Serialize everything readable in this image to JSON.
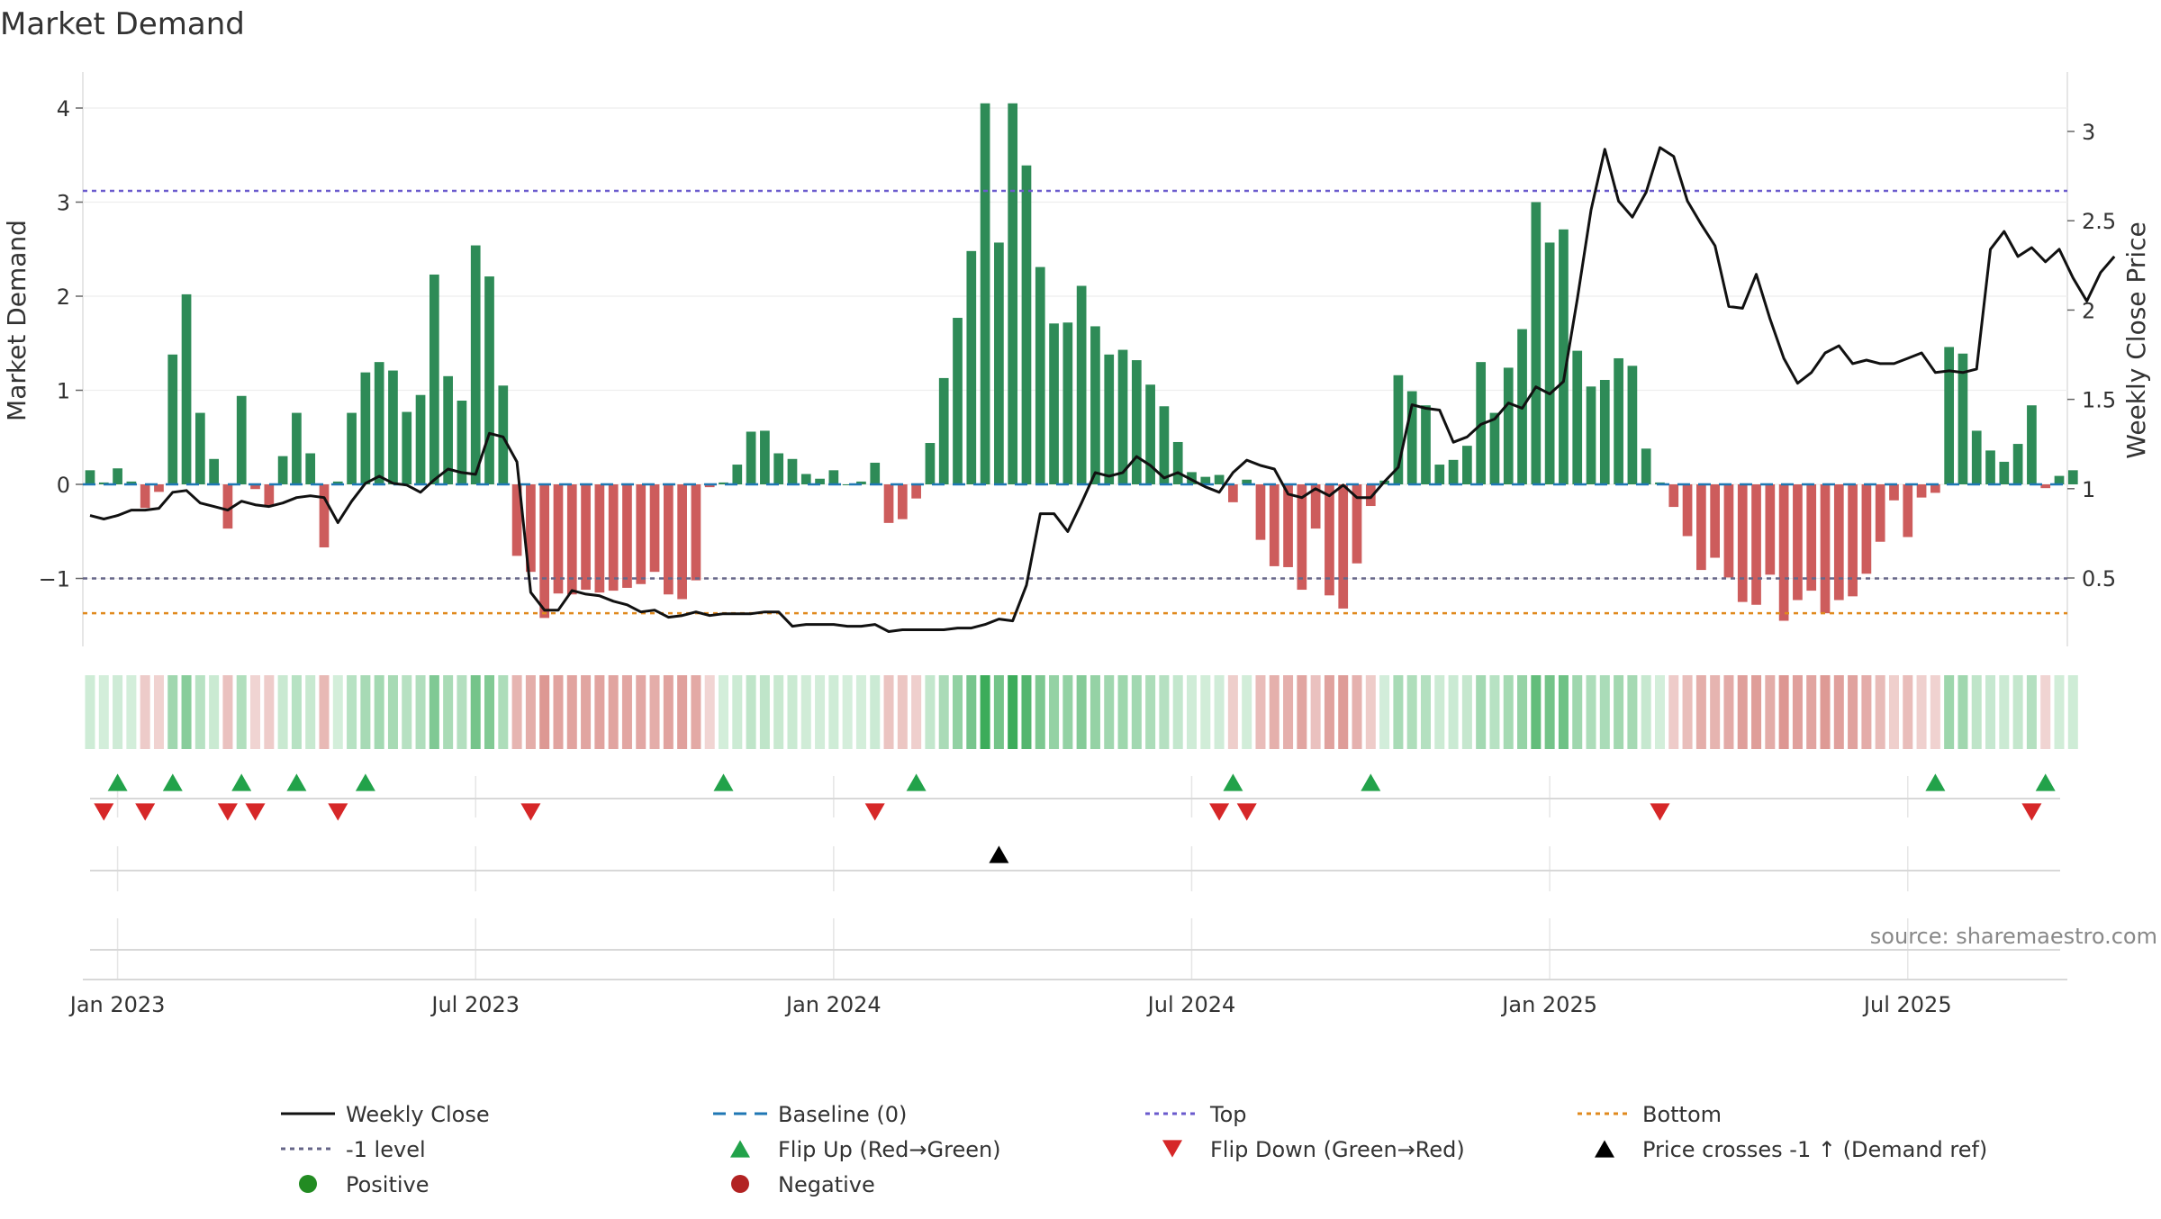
{
  "chart_data": {
    "type": "bar",
    "title": "Market Demand",
    "ylabel": "Market Demand",
    "ylabel_right": "Weekly Close Price",
    "ylim": [
      -1.75,
      4.35
    ],
    "ylim_right": [
      0.2,
      3.2
    ],
    "yticks": [
      -1,
      0,
      1,
      2,
      3,
      4
    ],
    "yticks_right": [
      0.5,
      1,
      1.5,
      2,
      2.5,
      3
    ],
    "levels": {
      "top": 3.12,
      "minus_one": -1.0,
      "bottom": -1.37,
      "baseline": 0
    },
    "x_ticks": [
      {
        "week": 2,
        "label": "Jan 2023"
      },
      {
        "week": 28,
        "label": "Jul 2023"
      },
      {
        "week": 54,
        "label": "Jan 2024"
      },
      {
        "week": 80,
        "label": "Jul 2024"
      },
      {
        "week": 106,
        "label": "Jan 2025"
      },
      {
        "week": 132,
        "label": "Jul 2025"
      }
    ],
    "n_weeks": 144,
    "series": [
      {
        "name": "Market Demand",
        "type": "bar",
        "values": [
          0.15,
          0.02,
          0.17,
          0.03,
          -0.25,
          -0.08,
          1.38,
          2.02,
          0.76,
          0.27,
          -0.47,
          0.94,
          -0.05,
          -0.22,
          0.3,
          0.76,
          0.33,
          -0.67,
          0.03,
          0.76,
          1.19,
          1.3,
          1.21,
          0.77,
          0.95,
          2.23,
          1.15,
          0.89,
          2.54,
          2.21,
          1.05,
          -0.76,
          -0.93,
          -1.42,
          -1.16,
          -1.17,
          -1.12,
          -1.15,
          -1.13,
          -1.1,
          -1.06,
          -0.93,
          -1.17,
          -1.22,
          -1.02,
          -0.03,
          0.02,
          0.21,
          0.56,
          0.57,
          0.33,
          0.27,
          0.11,
          0.06,
          0.15,
          0.0,
          0.03,
          0.23,
          -0.41,
          -0.37,
          -0.15,
          0.44,
          1.13,
          1.77,
          2.48,
          4.05,
          2.57,
          4.05,
          3.39,
          2.31,
          1.71,
          1.72,
          2.11,
          1.68,
          1.38,
          1.43,
          1.32,
          1.06,
          0.83,
          0.45,
          0.13,
          0.08,
          0.1,
          -0.19,
          0.05,
          -0.59,
          -0.87,
          -0.88,
          -1.12,
          -0.47,
          -1.18,
          -1.32,
          -0.84,
          -0.23,
          0.04,
          1.16,
          0.99,
          0.84,
          0.21,
          0.26,
          0.41,
          1.3,
          0.76,
          1.24,
          1.65,
          3.0,
          2.57,
          2.71,
          1.42,
          1.04,
          1.11,
          1.34,
          1.26,
          0.38,
          0.02,
          -0.24,
          -0.55,
          -0.91,
          -0.78,
          -0.99,
          -1.25,
          -1.28,
          -0.96,
          -1.45,
          -1.23,
          -1.13,
          -1.37,
          -1.23,
          -1.19,
          -0.95,
          -0.61,
          -0.17,
          -0.56,
          -0.14,
          -0.09,
          1.46,
          1.39,
          0.57,
          0.36,
          0.24,
          0.43,
          0.84,
          -0.04,
          0.09,
          0.15
        ]
      },
      {
        "name": "Weekly Close",
        "type": "line",
        "axis": "right",
        "values": [
          0.85,
          0.83,
          0.85,
          0.88,
          0.88,
          0.89,
          0.98,
          0.99,
          0.92,
          0.9,
          0.88,
          0.93,
          0.91,
          0.9,
          0.92,
          0.95,
          0.96,
          0.95,
          0.81,
          0.93,
          1.03,
          1.07,
          1.03,
          1.02,
          0.98,
          1.05,
          1.11,
          1.09,
          1.08,
          1.31,
          1.29,
          1.15,
          0.42,
          0.32,
          0.32,
          0.43,
          0.41,
          0.4,
          0.37,
          0.35,
          0.31,
          0.32,
          0.28,
          0.29,
          0.31,
          0.29,
          0.3,
          0.3,
          0.3,
          0.31,
          0.31,
          0.23,
          0.24,
          0.24,
          0.24,
          0.23,
          0.23,
          0.24,
          0.2,
          0.21,
          0.21,
          0.21,
          0.21,
          0.22,
          0.22,
          0.24,
          0.27,
          0.26,
          0.46,
          0.86,
          0.86,
          0.76,
          0.92,
          1.09,
          1.07,
          1.09,
          1.18,
          1.13,
          1.06,
          1.09,
          1.05,
          1.01,
          0.98,
          1.09,
          1.16,
          1.13,
          1.11,
          0.97,
          0.95,
          1.0,
          0.96,
          1.02,
          0.95,
          0.95,
          1.04,
          1.12,
          1.47,
          1.45,
          1.44,
          1.26,
          1.29,
          1.36,
          1.39,
          1.48,
          1.45,
          1.57,
          1.53,
          1.6,
          2.06,
          2.56,
          2.9,
          2.61,
          2.52,
          2.66,
          2.91,
          2.86,
          2.61,
          2.48,
          2.36,
          2.02,
          2.01,
          2.2,
          1.95,
          1.73,
          1.59,
          1.65,
          1.76,
          1.8,
          1.7,
          1.72,
          1.7,
          1.7,
          1.73,
          1.76,
          1.65,
          1.66,
          1.65,
          1.67,
          2.34,
          2.44,
          2.3,
          2.35,
          2.27,
          2.34,
          2.18,
          2.05,
          2.21,
          2.3
        ]
      },
      {
        "name": "Flip Up (Red→Green)",
        "type": "marker",
        "weeks": [
          2,
          6,
          11,
          15,
          20,
          46,
          60,
          83,
          93,
          134,
          142
        ]
      },
      {
        "name": "Flip Down (Green→Red)",
        "type": "marker",
        "weeks": [
          1,
          4,
          10,
          12,
          18,
          32,
          57,
          82,
          84,
          114,
          141
        ]
      },
      {
        "name": "Price crosses -1 ↑ (Demand ref)",
        "type": "marker",
        "weeks": [
          66
        ]
      }
    ],
    "colors": {
      "positive_bar": "#2e8b57",
      "negative_bar": "#cd5c5c",
      "close_line": "#111111",
      "baseline": "#1f77b4",
      "top": "#6a5acd",
      "minus_one": "#666688",
      "bottom": "#e08a1e",
      "flip_up": "#22a24a",
      "flip_down": "#d62728",
      "cross": "#000000",
      "positive_dot": "#228b22",
      "negative_dot": "#b22222"
    },
    "legend": [
      {
        "label": "Weekly Close",
        "kind": "line-solid",
        "color": "#111111"
      },
      {
        "label": "Baseline (0)",
        "kind": "line-dash",
        "color": "#1f77b4"
      },
      {
        "label": "Top",
        "kind": "line-dot",
        "color": "#6a5acd"
      },
      {
        "label": "Bottom",
        "kind": "line-dot",
        "color": "#e08a1e"
      },
      {
        "label": "-1 level",
        "kind": "line-dot",
        "color": "#666688"
      },
      {
        "label": "Flip Up (Red→Green)",
        "kind": "tri-up",
        "color": "#22a24a"
      },
      {
        "label": "Flip Down (Green→Red)",
        "kind": "tri-down",
        "color": "#d62728"
      },
      {
        "label": "Price crosses -1 ↑ (Demand ref)",
        "kind": "tri-up",
        "color": "#000000"
      },
      {
        "label": "Positive",
        "kind": "dot",
        "color": "#228b22"
      },
      {
        "label": "Negative",
        "kind": "dot",
        "color": "#b22222"
      }
    ],
    "source": "source: sharemaestro.com"
  }
}
